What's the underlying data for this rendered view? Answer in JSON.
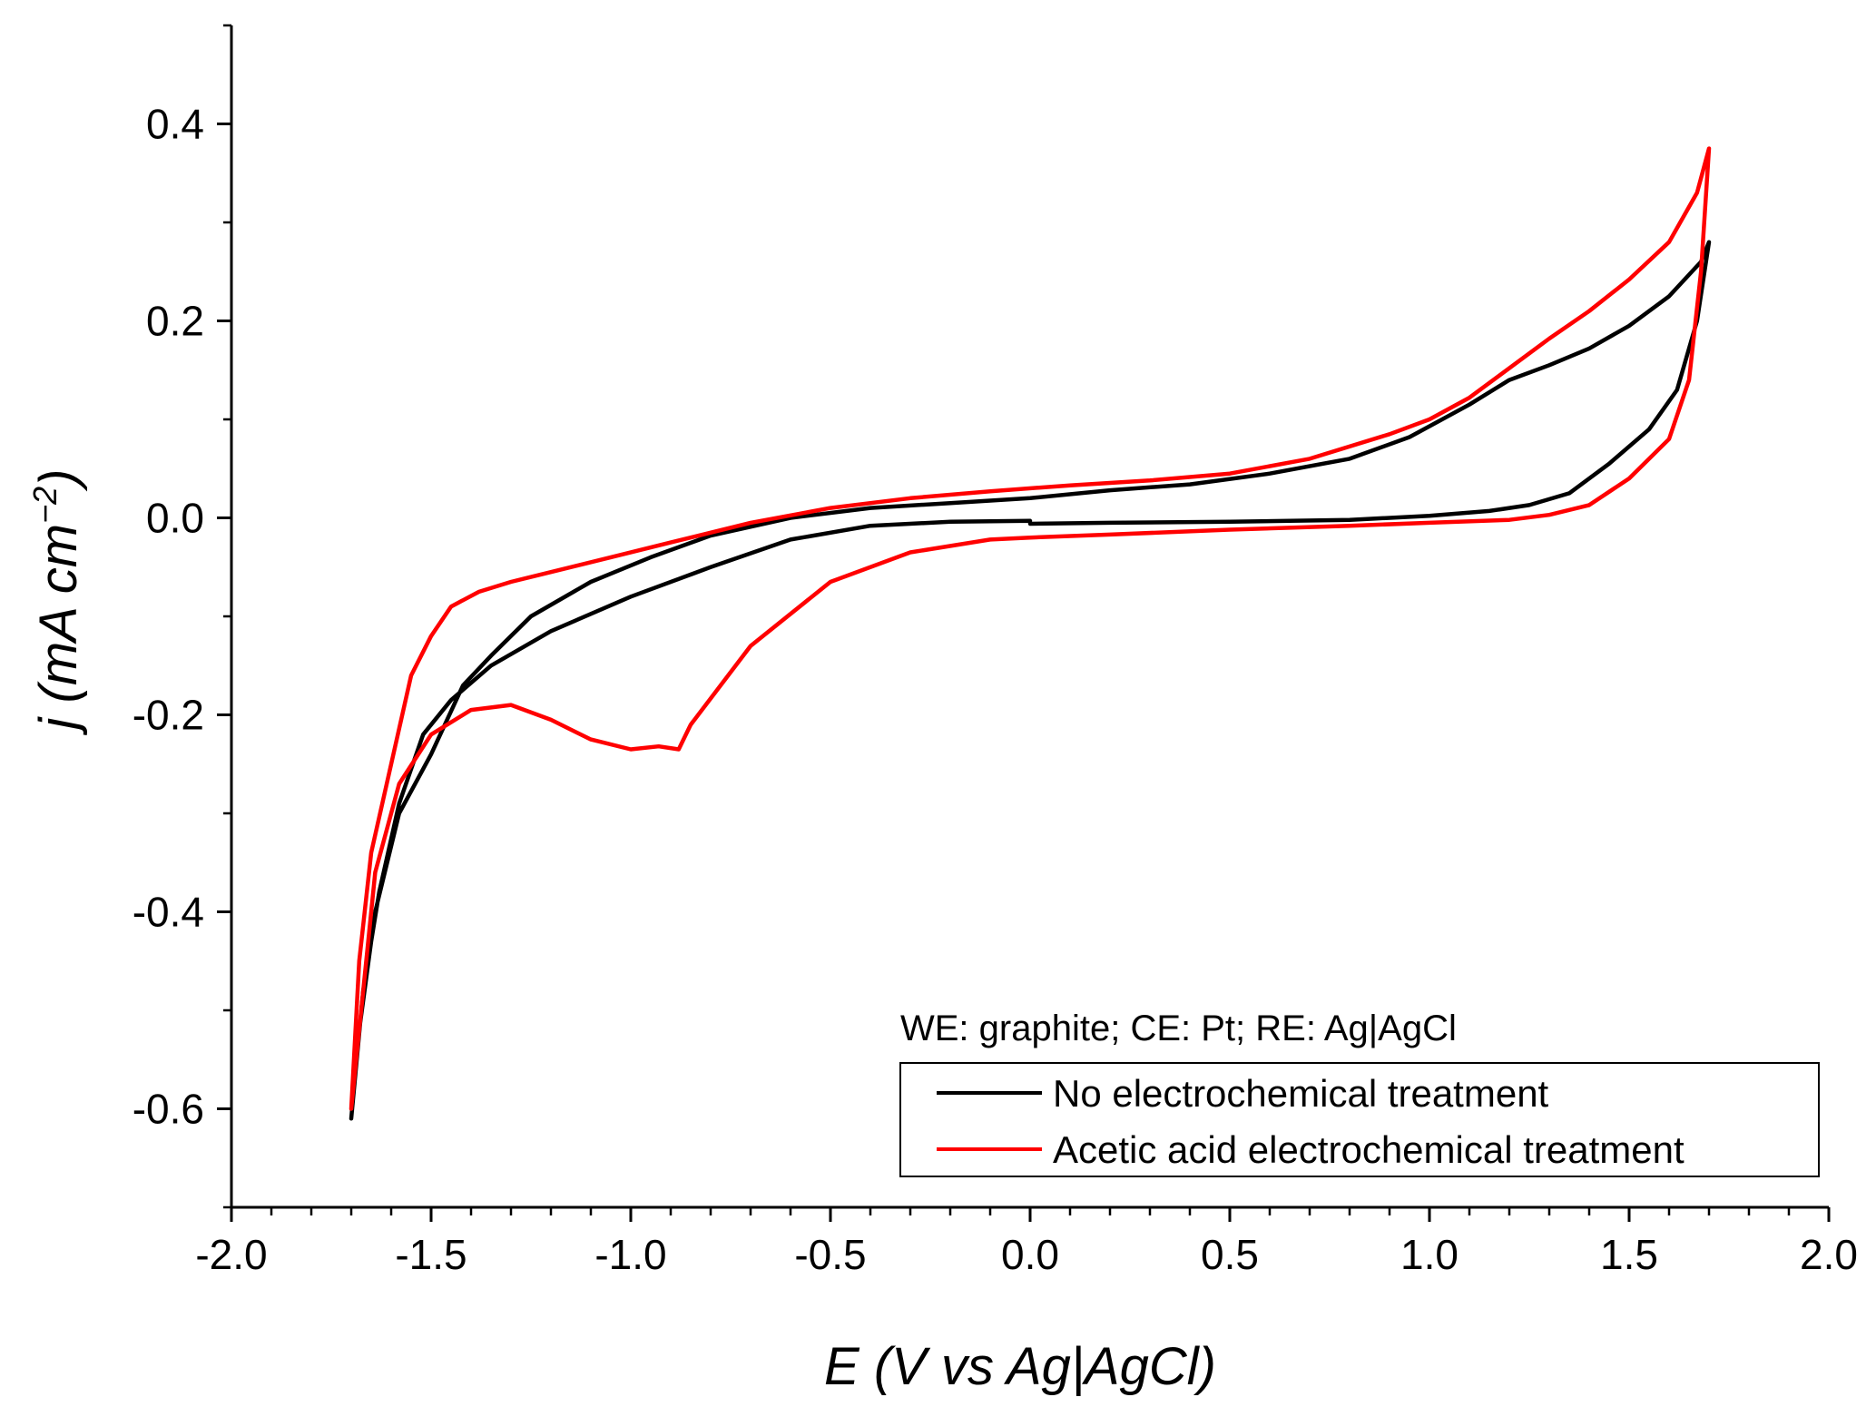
{
  "chart_data": {
    "type": "line",
    "title": "",
    "xlabel": "E (V vs Ag|AgCl)",
    "ylabel_prefix": "j (mA cm",
    "ylabel_sup": "−2",
    "ylabel_suffix": ")",
    "xlim": [
      -2.0,
      2.0
    ],
    "ylim": [
      -0.7,
      0.5
    ],
    "x_ticks": [
      -2.0,
      -1.5,
      -1.0,
      -0.5,
      0.0,
      0.5,
      1.0,
      1.5,
      2.0
    ],
    "x_tick_labels": [
      "-2.0",
      "-1.5",
      "-1.0",
      "-0.5",
      "0.0",
      "0.5",
      "1.0",
      "1.5",
      "2.0"
    ],
    "y_ticks": [
      -0.6,
      -0.4,
      -0.2,
      0.0,
      0.2,
      0.4
    ],
    "y_tick_labels": [
      "-0.6",
      "-0.4",
      "-0.2",
      "0.0",
      "0.2",
      "0.4"
    ],
    "grid": false,
    "legend_position": "bottom-right",
    "legend_title": "WE: graphite; CE: Pt; RE: Ag|AgCl",
    "series": [
      {
        "name": "No electrochemical treatment",
        "color": "#000000",
        "x": [
          0.0,
          -0.2,
          -0.4,
          -0.6,
          -0.8,
          -1.0,
          -1.2,
          -1.35,
          -1.45,
          -1.52,
          -1.58,
          -1.63,
          -1.67,
          -1.7,
          -1.68,
          -1.64,
          -1.58,
          -1.5,
          -1.42,
          -1.35,
          -1.25,
          -1.1,
          -0.95,
          -0.8,
          -0.6,
          -0.4,
          -0.2,
          0.0,
          0.2,
          0.4,
          0.6,
          0.8,
          0.95,
          1.1,
          1.2,
          1.3,
          1.4,
          1.5,
          1.6,
          1.68,
          1.7,
          1.67,
          1.62,
          1.55,
          1.45,
          1.35,
          1.25,
          1.15,
          1.0,
          0.8,
          0.5,
          0.2,
          0.0
        ],
        "y": [
          -0.003,
          -0.004,
          -0.008,
          -0.022,
          -0.05,
          -0.08,
          -0.115,
          -0.15,
          -0.185,
          -0.22,
          -0.29,
          -0.38,
          -0.48,
          -0.61,
          -0.52,
          -0.4,
          -0.3,
          -0.24,
          -0.17,
          -0.14,
          -0.1,
          -0.065,
          -0.04,
          -0.018,
          0.0,
          0.01,
          0.015,
          0.02,
          0.028,
          0.034,
          0.045,
          0.06,
          0.082,
          0.115,
          0.14,
          0.155,
          0.172,
          0.195,
          0.225,
          0.26,
          0.28,
          0.2,
          0.13,
          0.09,
          0.055,
          0.025,
          0.013,
          0.007,
          0.002,
          -0.002,
          -0.004,
          -0.005,
          -0.006
        ]
      },
      {
        "name": "Acetic acid electrochemical treatment",
        "color": "#ff0000",
        "x": [
          0.0,
          -0.1,
          -0.3,
          -0.5,
          -0.7,
          -0.85,
          -0.88,
          -0.93,
          -1.0,
          -1.1,
          -1.2,
          -1.3,
          -1.4,
          -1.5,
          -1.58,
          -1.64,
          -1.7,
          -1.68,
          -1.65,
          -1.6,
          -1.55,
          -1.5,
          -1.45,
          -1.38,
          -1.3,
          -1.2,
          -1.05,
          -0.9,
          -0.7,
          -0.5,
          -0.3,
          -0.1,
          0.1,
          0.3,
          0.5,
          0.7,
          0.9,
          1.0,
          1.1,
          1.2,
          1.3,
          1.4,
          1.5,
          1.6,
          1.67,
          1.7,
          1.68,
          1.65,
          1.6,
          1.5,
          1.4,
          1.3,
          1.2,
          1.0,
          0.8,
          0.5,
          0.2,
          0.0
        ],
        "y": [
          -0.02,
          -0.022,
          -0.035,
          -0.065,
          -0.13,
          -0.21,
          -0.235,
          -0.232,
          -0.235,
          -0.225,
          -0.205,
          -0.19,
          -0.195,
          -0.22,
          -0.27,
          -0.36,
          -0.6,
          -0.45,
          -0.34,
          -0.25,
          -0.16,
          -0.12,
          -0.09,
          -0.075,
          -0.065,
          -0.055,
          -0.04,
          -0.025,
          -0.005,
          0.01,
          0.02,
          0.027,
          0.033,
          0.038,
          0.045,
          0.06,
          0.085,
          0.1,
          0.122,
          0.152,
          0.182,
          0.21,
          0.242,
          0.28,
          0.33,
          0.375,
          0.25,
          0.14,
          0.08,
          0.04,
          0.013,
          0.003,
          -0.002,
          -0.005,
          -0.008,
          -0.012,
          -0.017,
          -0.02
        ]
      }
    ]
  }
}
